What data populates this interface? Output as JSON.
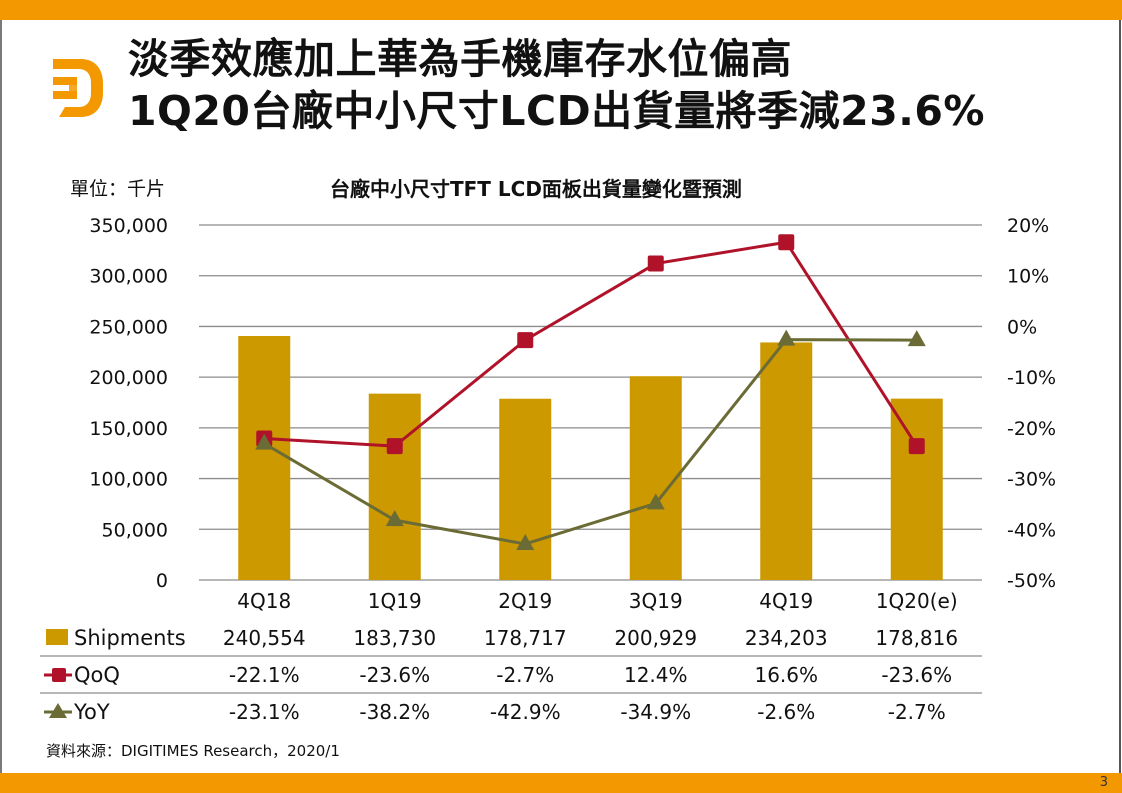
{
  "page": {
    "title_line1": "淡季效應加上華為手機庫存水位偏高",
    "title_line2": "1Q20台廠中小尺寸LCD出貨量將季減23.6%",
    "unit_label": "單位：千片",
    "source": "資料來源：DIGITIMES Research，2020/1",
    "page_number": "3",
    "logo_icon": "digitimes-d-logo-icon"
  },
  "colors": {
    "accent_orange": "#F39800",
    "bar": "#CC9900",
    "qoq": "#B0122A",
    "yoy": "#6B6B35",
    "grid": "#8c8c8c"
  },
  "chart_data": {
    "type": "bar",
    "title": "台廠中小尺寸TFT LCD面板出貨量變化暨預測",
    "xlabel": "",
    "ylabel": "單位：千片",
    "categories": [
      "4Q18",
      "1Q19",
      "2Q19",
      "3Q19",
      "4Q19",
      "1Q20(e)"
    ],
    "series": [
      {
        "name": "Shipments",
        "type": "bar",
        "axis": "left",
        "values": [
          240554,
          183730,
          178717,
          200929,
          234203,
          178816
        ],
        "labels": [
          "240,554",
          "183,730",
          "178,717",
          "200,929",
          "234,203",
          "178,816"
        ]
      },
      {
        "name": "QoQ",
        "type": "line",
        "marker": "square",
        "axis": "right",
        "values": [
          -22.1,
          -23.6,
          -2.7,
          12.4,
          16.6,
          -23.6
        ],
        "labels": [
          "-22.1%",
          "-23.6%",
          "-2.7%",
          "12.4%",
          "16.6%",
          "-23.6%"
        ]
      },
      {
        "name": "YoY",
        "type": "line",
        "marker": "triangle",
        "axis": "right",
        "values": [
          -23.1,
          -38.2,
          -42.9,
          -34.9,
          -2.6,
          -2.7
        ],
        "labels": [
          "-23.1%",
          "-38.2%",
          "-42.9%",
          "-34.9%",
          "-2.6%",
          "-2.7%"
        ]
      }
    ],
    "ylim_left": [
      0,
      350000
    ],
    "ylim_right": [
      -50,
      20
    ],
    "yticks_left": [
      "350,000",
      "300,000",
      "250,000",
      "200,000",
      "150,000",
      "100,000",
      "50,000",
      "0"
    ],
    "yticks_right": [
      "20%",
      "10%",
      "0%",
      "-10%",
      "-20%",
      "-30%",
      "-40%",
      "-50%"
    ],
    "grid": true,
    "legend": "data-table-bottom"
  }
}
